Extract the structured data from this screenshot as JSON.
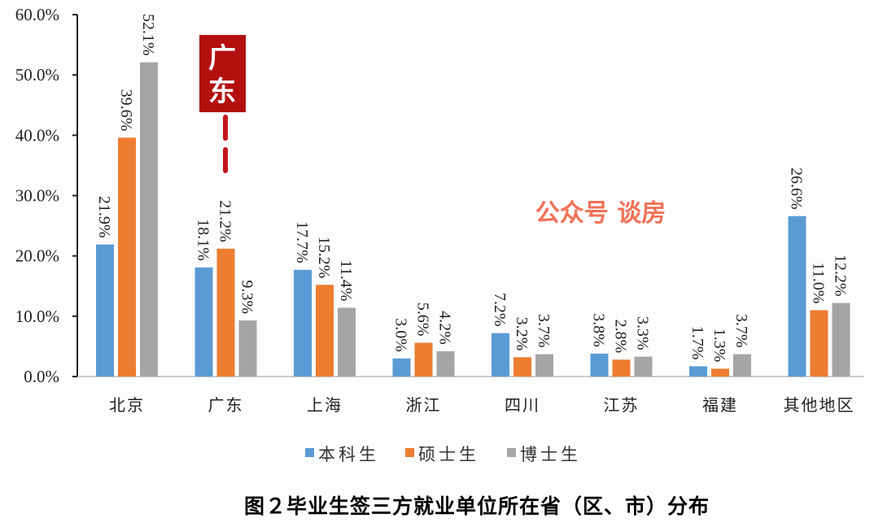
{
  "chart_data": {
    "type": "bar",
    "title": "图２毕业生签三方就业单位所在省（区、市）分布",
    "xlabel": "",
    "ylabel": "",
    "ylim": [
      0,
      60
    ],
    "yticks": [
      "0.0%",
      "10.0%",
      "20.0%",
      "30.0%",
      "40.0%",
      "50.0%",
      "60.0%"
    ],
    "ytick_values": [
      0,
      10,
      20,
      30,
      40,
      50,
      60
    ],
    "grid": false,
    "legend_position": "bottom",
    "categories": [
      "北京",
      "广东",
      "上海",
      "浙江",
      "四川",
      "江苏",
      "福建",
      "其他地区"
    ],
    "series": [
      {
        "name": "本科生",
        "color": "#5b9bd5",
        "values": [
          21.9,
          18.1,
          17.7,
          3.0,
          7.2,
          3.8,
          1.7,
          26.6
        ],
        "labels": [
          "21.9%",
          "18.1%",
          "17.7%",
          "3.0%",
          "7.2%",
          "3.8%",
          "1.7%",
          "26.6%"
        ]
      },
      {
        "name": "硕士生",
        "color": "#ed7d31",
        "values": [
          39.6,
          21.2,
          15.2,
          5.6,
          3.2,
          2.8,
          1.3,
          11.0
        ],
        "labels": [
          "39.6%",
          "21.2%",
          "15.2%",
          "5.6%",
          "3.2%",
          "2.8%",
          "1.3%",
          "11.0%"
        ]
      },
      {
        "name": "博士生",
        "color": "#a5a5a5",
        "values": [
          52.1,
          9.3,
          11.4,
          4.2,
          3.7,
          3.3,
          3.7,
          12.2
        ],
        "labels": [
          "52.1%",
          "9.3%",
          "11.4%",
          "4.2%",
          "3.7%",
          "3.3%",
          "3.7%",
          "12.2%"
        ]
      }
    ],
    "annotations": [
      {
        "text": "广东",
        "color": "#b30f0f"
      }
    ]
  },
  "watermark": {
    "text": "公众号 谈房",
    "color": "#f05a3c"
  }
}
